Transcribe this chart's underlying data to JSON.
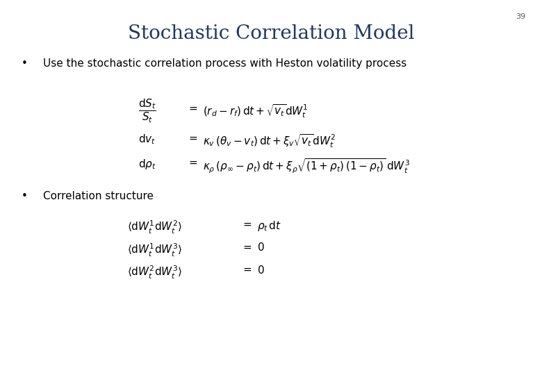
{
  "title": "Stochastic Correlation Model",
  "title_color": "#1F3864",
  "title_fontsize": 20,
  "page_number": "39",
  "background_color": "#ffffff",
  "bullet1": "Use the stochastic correlation process with Heston volatility process",
  "bullet2": "Correlation structure",
  "text_color": "#000000",
  "bullet_fontsize": 11,
  "eq_fontsize": 11
}
